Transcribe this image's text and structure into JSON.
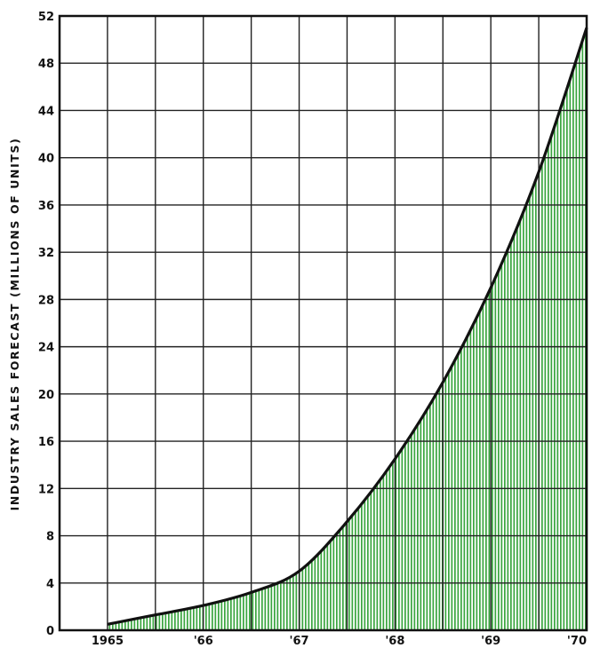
{
  "chart_data": {
    "type": "area",
    "title": "",
    "xlabel": "",
    "ylabel": "INDUSTRY SALES FORECAST (MILLIONS OF UNITS)",
    "x": [
      1965,
      1965.5,
      1966,
      1966.5,
      1967,
      1967.5,
      1968,
      1968.5,
      1969,
      1969.5,
      1970
    ],
    "series": [
      {
        "values": [
          0.5,
          1.3,
          2.1,
          3.2,
          5.0,
          9.2,
          14.5,
          21.0,
          29.0,
          38.8,
          51.0
        ]
      }
    ],
    "x_tick_labels": [
      "1965",
      "'66",
      "'67",
      "'68",
      "'69",
      "'70"
    ],
    "y_tick_labels": [
      "0",
      "4",
      "8",
      "12",
      "16",
      "20",
      "24",
      "28",
      "32",
      "36",
      "40",
      "44",
      "48",
      "52"
    ],
    "xlim": [
      1964.5,
      1970
    ],
    "ylim": [
      0,
      52
    ],
    "grid": true,
    "colors": {
      "fill": "#3aa53f",
      "line": "#111111",
      "grid": "#222222",
      "background": "#ffffff"
    }
  }
}
